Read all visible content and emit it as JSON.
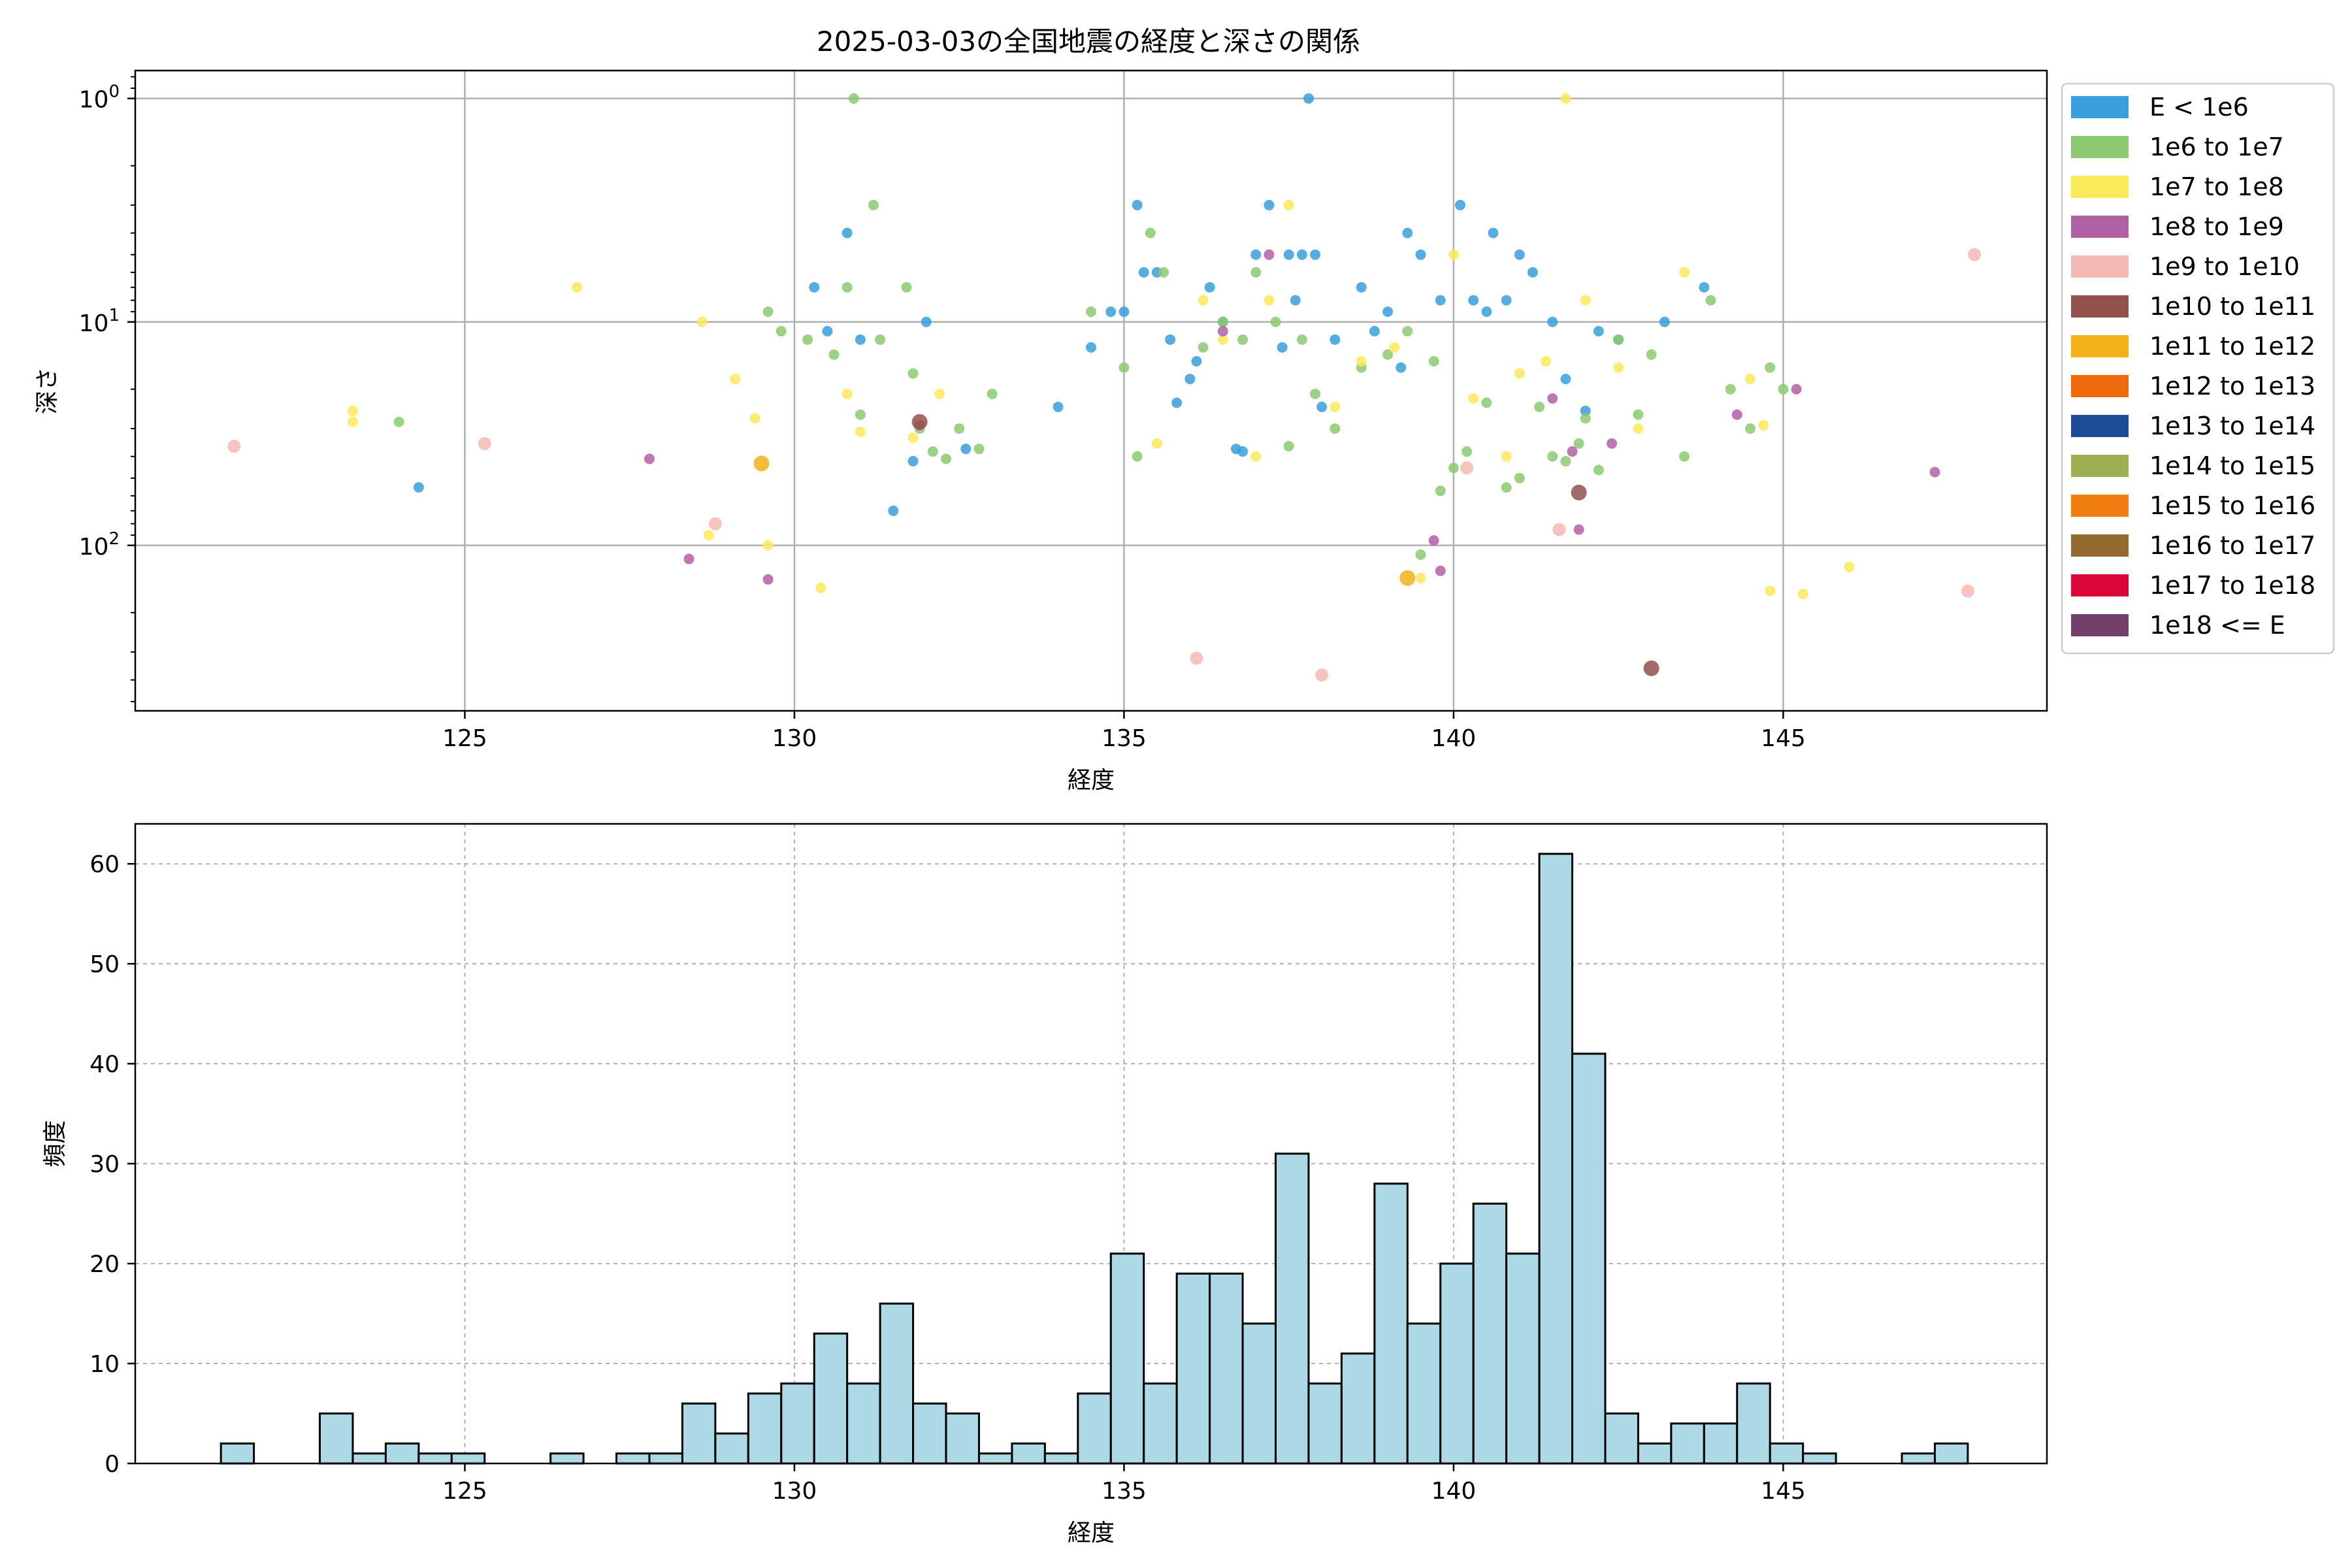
{
  "title": "2025-03-03の全国地震の経度と深さの関係",
  "chart_data": [
    {
      "type": "scatter",
      "title": "2025-03-03の全国地震の経度と深さの関係",
      "xlabel": "経度",
      "ylabel": "深さ",
      "y_scale": "log",
      "y_inverted": true,
      "xlim": [
        120,
        149
      ],
      "ylim_depth": [
        1,
        550
      ],
      "xticks": [
        125,
        130,
        135,
        140,
        145
      ],
      "ytick_labels": [
        "10^0",
        "10^1",
        "10^2"
      ],
      "yticks": [
        1,
        10,
        100
      ],
      "grid": true,
      "legend_position": "outside-right",
      "series": [
        {
          "name": "E < 1e6",
          "color": "#3b9fdb",
          "points": [
            [
              124.3,
              55
            ],
            [
              130.3,
              7
            ],
            [
              130.5,
              11
            ],
            [
              130.8,
              4
            ],
            [
              131.0,
              12
            ],
            [
              131.5,
              70
            ],
            [
              132.0,
              10
            ],
            [
              131.8,
              42
            ],
            [
              132.6,
              37
            ],
            [
              134.0,
              24
            ],
            [
              134.5,
              13
            ],
            [
              134.8,
              9
            ],
            [
              135.0,
              9
            ],
            [
              135.2,
              3
            ],
            [
              135.3,
              6
            ],
            [
              135.5,
              6
            ],
            [
              135.7,
              12
            ],
            [
              135.8,
              23
            ],
            [
              136.0,
              18
            ],
            [
              136.1,
              15
            ],
            [
              136.3,
              7
            ],
            [
              136.5,
              10
            ],
            [
              136.7,
              37
            ],
            [
              136.8,
              38
            ],
            [
              137.0,
              5
            ],
            [
              137.2,
              3
            ],
            [
              137.4,
              13
            ],
            [
              137.5,
              5
            ],
            [
              137.6,
              8
            ],
            [
              137.7,
              5
            ],
            [
              137.8,
              1
            ],
            [
              137.9,
              5
            ],
            [
              138.0,
              24
            ],
            [
              138.2,
              12
            ],
            [
              138.6,
              7
            ],
            [
              138.8,
              11
            ],
            [
              139.0,
              9
            ],
            [
              139.2,
              16
            ],
            [
              139.3,
              4
            ],
            [
              139.5,
              5
            ],
            [
              139.8,
              8
            ],
            [
              140.1,
              3
            ],
            [
              140.3,
              8
            ],
            [
              140.5,
              9
            ],
            [
              140.6,
              4
            ],
            [
              140.8,
              8
            ],
            [
              141.0,
              5
            ],
            [
              141.2,
              6
            ],
            [
              141.5,
              10
            ],
            [
              141.7,
              18
            ],
            [
              142.0,
              25
            ],
            [
              142.2,
              11
            ],
            [
              142.5,
              12
            ],
            [
              143.2,
              10
            ],
            [
              143.8,
              7
            ]
          ]
        },
        {
          "name": "1e6 to 1e7",
          "color": "#8cc971",
          "points": [
            [
              124.0,
              28
            ],
            [
              129.6,
              9
            ],
            [
              129.8,
              11
            ],
            [
              130.2,
              12
            ],
            [
              130.6,
              14
            ],
            [
              130.8,
              7
            ],
            [
              130.9,
              1
            ],
            [
              131.0,
              26
            ],
            [
              131.2,
              3
            ],
            [
              131.3,
              12
            ],
            [
              131.7,
              7
            ],
            [
              131.8,
              17
            ],
            [
              131.9,
              30
            ],
            [
              132.1,
              38
            ],
            [
              132.3,
              41
            ],
            [
              132.5,
              30
            ],
            [
              132.8,
              37
            ],
            [
              133.0,
              21
            ],
            [
              134.5,
              9
            ],
            [
              135.0,
              16
            ],
            [
              135.2,
              40
            ],
            [
              135.4,
              4
            ],
            [
              135.6,
              6
            ],
            [
              136.2,
              13
            ],
            [
              136.5,
              10
            ],
            [
              136.8,
              12
            ],
            [
              137.0,
              6
            ],
            [
              137.3,
              10
            ],
            [
              137.5,
              36
            ],
            [
              137.7,
              12
            ],
            [
              137.9,
              21
            ],
            [
              138.2,
              30
            ],
            [
              138.6,
              16
            ],
            [
              139.0,
              14
            ],
            [
              139.3,
              11
            ],
            [
              139.5,
              110
            ],
            [
              139.7,
              15
            ],
            [
              139.8,
              57
            ],
            [
              140.0,
              45
            ],
            [
              140.2,
              38
            ],
            [
              140.5,
              23
            ],
            [
              140.8,
              55
            ],
            [
              141.0,
              50
            ],
            [
              141.3,
              24
            ],
            [
              141.5,
              40
            ],
            [
              141.7,
              42
            ],
            [
              141.9,
              35
            ],
            [
              142.0,
              27
            ],
            [
              142.2,
              46
            ],
            [
              142.5,
              12
            ],
            [
              142.8,
              26
            ],
            [
              143.0,
              14
            ],
            [
              143.5,
              40
            ],
            [
              143.9,
              8
            ],
            [
              144.2,
              20
            ],
            [
              144.5,
              30
            ],
            [
              144.8,
              16
            ],
            [
              145.0,
              20
            ]
          ]
        },
        {
          "name": "1e7 to 1e8",
          "color": "#fbe95c",
          "points": [
            [
              123.3,
              25
            ],
            [
              123.3,
              28
            ],
            [
              126.7,
              7
            ],
            [
              128.6,
              10
            ],
            [
              128.7,
              90
            ],
            [
              129.1,
              18
            ],
            [
              129.4,
              27
            ],
            [
              129.6,
              100
            ],
            [
              130.4,
              155
            ],
            [
              130.8,
              21
            ],
            [
              131.0,
              31
            ],
            [
              131.8,
              33
            ],
            [
              132.2,
              21
            ],
            [
              135.5,
              35
            ],
            [
              136.2,
              8
            ],
            [
              136.5,
              12
            ],
            [
              137.0,
              40
            ],
            [
              137.2,
              8
            ],
            [
              137.5,
              3
            ],
            [
              138.2,
              24
            ],
            [
              138.6,
              15
            ],
            [
              139.1,
              13
            ],
            [
              139.5,
              140
            ],
            [
              140.0,
              5
            ],
            [
              140.3,
              22
            ],
            [
              140.8,
              40
            ],
            [
              141.0,
              17
            ],
            [
              141.4,
              15
            ],
            [
              141.7,
              1
            ],
            [
              142.0,
              8
            ],
            [
              142.5,
              16
            ],
            [
              142.8,
              30
            ],
            [
              143.5,
              6
            ],
            [
              144.5,
              18
            ],
            [
              144.7,
              29
            ],
            [
              144.8,
              160
            ],
            [
              145.3,
              165
            ],
            [
              146.0,
              125
            ]
          ]
        },
        {
          "name": "1e8 to 1e9",
          "color": "#b160a3",
          "points": [
            [
              127.8,
              41
            ],
            [
              128.4,
              115
            ],
            [
              129.6,
              142
            ],
            [
              131.9,
              29
            ],
            [
              136.5,
              11
            ],
            [
              137.2,
              5
            ],
            [
              139.7,
              95
            ],
            [
              139.8,
              130
            ],
            [
              141.5,
              22
            ],
            [
              141.8,
              38
            ],
            [
              141.9,
              85
            ],
            [
              142.4,
              35
            ],
            [
              144.3,
              26
            ],
            [
              145.2,
              20
            ],
            [
              147.3,
              47
            ]
          ]
        },
        {
          "name": "1e9 to 1e10",
          "color": "#f4b9b4",
          "points": [
            [
              121.5,
              36
            ],
            [
              125.3,
              35
            ],
            [
              128.8,
              80
            ],
            [
              136.1,
              320
            ],
            [
              138.0,
              380
            ],
            [
              140.2,
              45
            ],
            [
              141.6,
              85
            ],
            [
              147.8,
              160
            ],
            [
              147.9,
              5
            ]
          ]
        },
        {
          "name": "1e10 to 1e11",
          "color": "#93514c",
          "points": [
            [
              131.9,
              28
            ],
            [
              141.9,
              58
            ],
            [
              143.0,
              355
            ]
          ]
        },
        {
          "name": "1e11 to 1e12",
          "color": "#f3b21a",
          "points": [
            [
              129.5,
              43
            ],
            [
              139.3,
              140
            ]
          ]
        }
      ],
      "legend": [
        {
          "label": "E < 1e6",
          "color": "#3b9fdb"
        },
        {
          "label": "1e6 to 1e7",
          "color": "#8cc971"
        },
        {
          "label": "1e7 to 1e8",
          "color": "#fbe95c"
        },
        {
          "label": "1e8 to 1e9",
          "color": "#b160a3"
        },
        {
          "label": "1e9 to 1e10",
          "color": "#f4b9b4"
        },
        {
          "label": "1e10 to 1e11",
          "color": "#93514c"
        },
        {
          "label": "1e11 to 1e12",
          "color": "#f3b21a"
        },
        {
          "label": "1e12 to 1e13",
          "color": "#ee6a0d"
        },
        {
          "label": "1e13 to 1e14",
          "color": "#1e4b95"
        },
        {
          "label": "1e14 to 1e15",
          "color": "#9caf51"
        },
        {
          "label": "1e15 to 1e16",
          "color": "#ef7d10"
        },
        {
          "label": "1e16 to 1e17",
          "color": "#93692f"
        },
        {
          "label": "1e17 to 1e18",
          "color": "#dc0537"
        },
        {
          "label": "1e18 <= E",
          "color": "#733f6b"
        }
      ]
    },
    {
      "type": "bar",
      "subtype": "histogram",
      "xlabel": "経度",
      "ylabel": "頻度",
      "xlim": [
        120,
        149
      ],
      "ylim": [
        0,
        64
      ],
      "xticks": [
        125,
        130,
        135,
        140,
        145
      ],
      "yticks": [
        0,
        10,
        20,
        30,
        40,
        50,
        60
      ],
      "grid": true,
      "bar_color": "#add8e6",
      "edge_color": "#000000",
      "bin_start": 121.3,
      "bin_width": 0.5,
      "values": [
        2,
        0,
        0,
        5,
        1,
        2,
        1,
        1,
        0,
        0,
        1,
        0,
        1,
        1,
        6,
        3,
        7,
        8,
        13,
        8,
        16,
        6,
        5,
        1,
        2,
        1,
        7,
        21,
        8,
        19,
        19,
        14,
        31,
        8,
        11,
        28,
        14,
        20,
        26,
        21,
        61,
        41,
        5,
        2,
        4,
        4,
        8,
        2,
        1,
        0,
        0,
        1,
        2
      ]
    }
  ]
}
